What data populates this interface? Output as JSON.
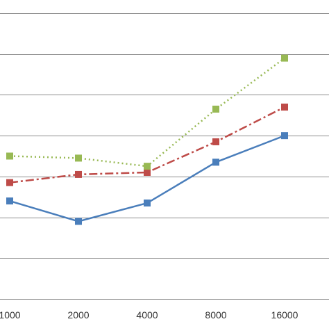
{
  "chart_data": {
    "type": "line",
    "categories": [
      "1000",
      "2000",
      "4000",
      "8000",
      "16000"
    ],
    "series": [
      {
        "values": [
          0.48,
          0.38,
          0.47,
          0.67,
          0.8
        ],
        "color": "#4a7ebb",
        "line_style": "solid",
        "marker": "square"
      },
      {
        "values": [
          0.57,
          0.61,
          0.62,
          0.77,
          0.94
        ],
        "color": "#be4b48",
        "line_style": "dash-dot",
        "marker": "square"
      },
      {
        "values": [
          0.7,
          0.69,
          0.65,
          0.93,
          1.18
        ],
        "color": "#98b954",
        "line_style": "dotted",
        "marker": "square"
      }
    ],
    "ylim": [
      0,
      1.4
    ],
    "y_gridlines": [
      0.2,
      0.4,
      0.6,
      0.8,
      1.0,
      1.2,
      1.4
    ],
    "grid": true,
    "legend": "none",
    "title": "",
    "xlabel": "",
    "ylabel": ""
  }
}
